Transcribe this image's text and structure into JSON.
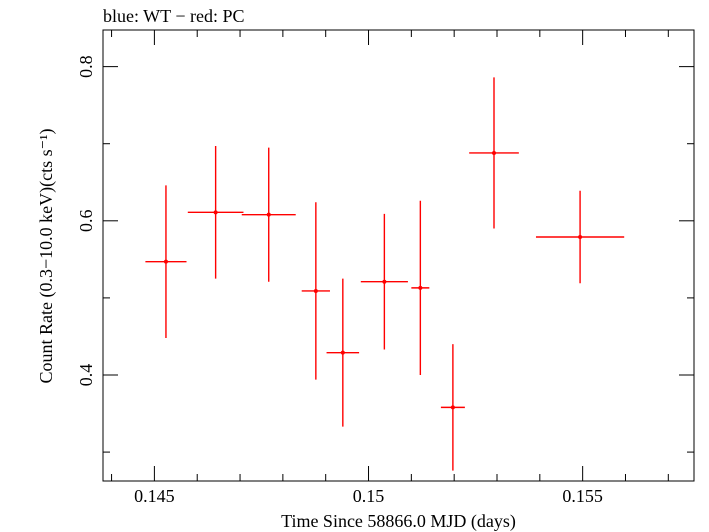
{
  "chart_data": {
    "type": "scatter",
    "title": "blue: WT − red: PC",
    "xlabel": "Time Since 58866.0 MJD (days)",
    "ylabel": "Count Rate (0.3−10.0 keV)(cts s⁻¹)",
    "xlim": [
      0.1438,
      0.1576
    ],
    "ylim": [
      0.2625,
      0.8475
    ],
    "x_ticks": [
      0.145,
      0.15,
      0.155
    ],
    "x_tick_labels": [
      "0.145",
      "0.15",
      "0.155"
    ],
    "y_ticks": [
      0.4,
      0.6,
      0.8
    ],
    "y_tick_labels": [
      "0.4",
      "0.6",
      "0.8"
    ],
    "grid": false,
    "series": [
      {
        "color": "#ff0000",
        "points": [
          {
            "x": 0.14527,
            "xerr": 0.00048,
            "y": 0.547,
            "yerr": 0.099
          },
          {
            "x": 0.14643,
            "xerr": 0.00065,
            "y": 0.611,
            "yerr": 0.086
          },
          {
            "x": 0.14767,
            "xerr": 0.00063,
            "y": 0.608,
            "yerr": 0.087
          },
          {
            "x": 0.14877,
            "xerr": 0.00033,
            "y": 0.509,
            "yerr": 0.115
          },
          {
            "x": 0.1494,
            "xerr": 0.00038,
            "y": 0.429,
            "yerr": 0.096
          },
          {
            "x": 0.15037,
            "xerr": 0.00055,
            "y": 0.521,
            "yerr": 0.088
          },
          {
            "x": 0.15121,
            "xerr": 0.00021,
            "y": 0.513,
            "yerr": 0.113
          },
          {
            "x": 0.15197,
            "xerr": 0.00028,
            "y": 0.358,
            "yerr": 0.082
          },
          {
            "x": 0.15293,
            "xerr": 0.00058,
            "y": 0.688,
            "yerr": 0.098
          },
          {
            "x": 0.15494,
            "xerr": 0.00103,
            "y": 0.579,
            "yerr": 0.06
          }
        ]
      }
    ]
  }
}
